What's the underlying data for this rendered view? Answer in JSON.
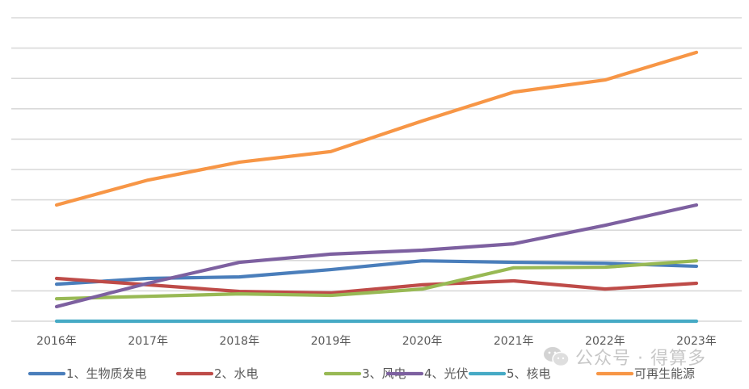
{
  "chart_data": {
    "type": "line",
    "title": "",
    "xlabel": "",
    "ylabel": "",
    "ylim": [
      0,
      10
    ],
    "grid": true,
    "gridline_count": 10,
    "y_tick_labels_visible": false,
    "legend_position": "bottom",
    "categories": [
      "2016年",
      "2017年",
      "2018年",
      "2019年",
      "2020年",
      "2021年",
      "2022年",
      "2023年"
    ],
    "series": [
      {
        "name": "1、生物质发电",
        "color": "#4a7ebb",
        "values": [
          1.22,
          1.41,
          1.46,
          1.7,
          1.99,
          1.94,
          1.91,
          1.81
        ]
      },
      {
        "name": "2、水电",
        "color": "#be4b48",
        "values": [
          1.41,
          1.2,
          0.98,
          0.93,
          1.2,
          1.33,
          1.06,
          1.25
        ]
      },
      {
        "name": "3、风电",
        "color": "#98b954",
        "values": [
          0.74,
          0.82,
          0.9,
          0.85,
          1.06,
          1.76,
          1.78,
          1.99
        ]
      },
      {
        "name": "4、光伏",
        "color": "#7d60a0",
        "values": [
          0.48,
          1.25,
          1.94,
          2.21,
          2.34,
          2.55,
          3.16,
          3.83
        ]
      },
      {
        "name": "5、核电",
        "color": "#46aac5",
        "values": [
          0,
          0,
          0,
          0,
          0,
          0,
          0,
          0
        ]
      },
      {
        "name": "可再生能源",
        "color": "#f79646",
        "values": [
          3.83,
          4.65,
          5.24,
          5.59,
          6.6,
          7.55,
          7.95,
          8.86
        ]
      }
    ]
  },
  "watermark": {
    "text": "公众号 · 得算多",
    "icon": "wechat-icon"
  }
}
